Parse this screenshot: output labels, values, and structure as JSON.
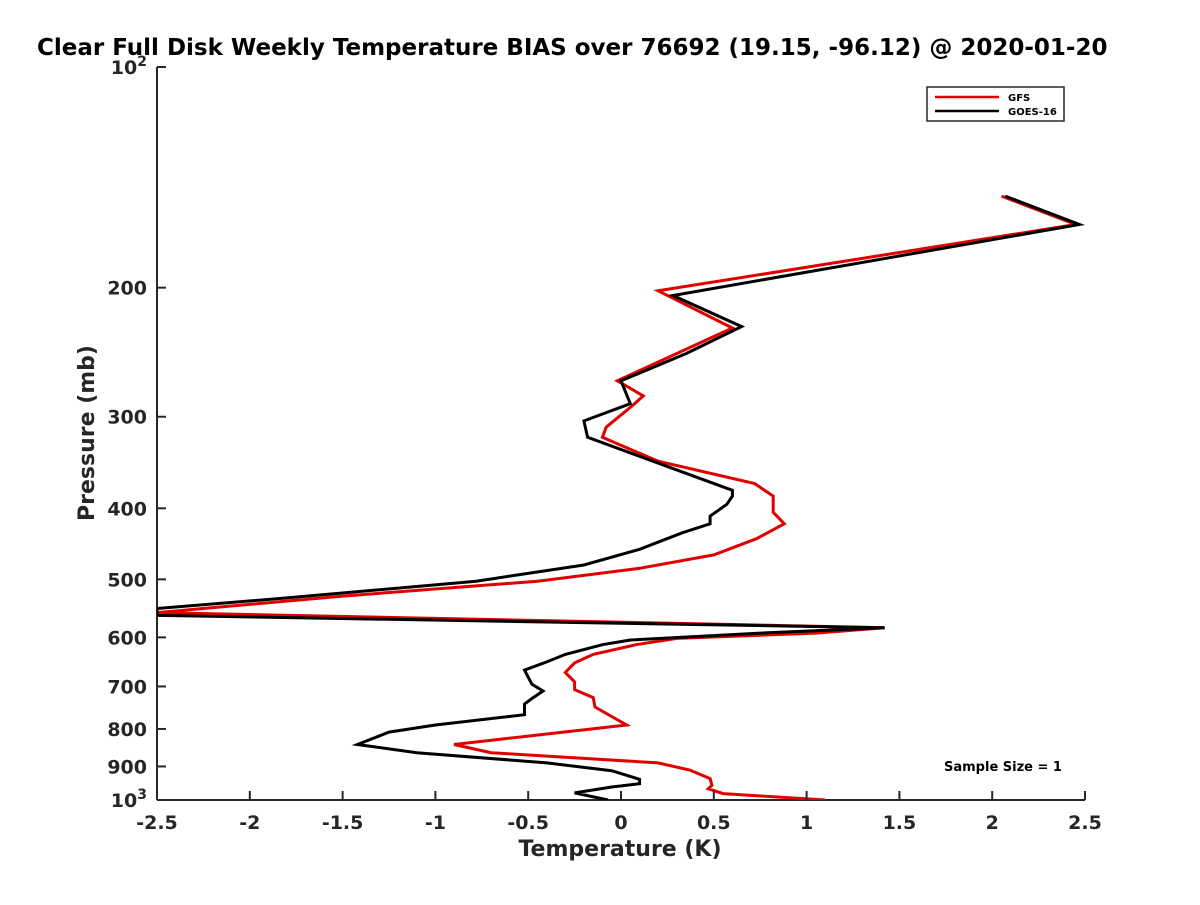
{
  "chart_data": {
    "type": "line",
    "title": "Clear Full Disk Weekly Temperature BIAS over 76692 (19.15, -96.12) @ 2020-01-20",
    "xlabel": "Temperature (K)",
    "ylabel": "Pressure (mb)",
    "xlim": [
      -2.5,
      2.5
    ],
    "ylim": [
      100,
      1000
    ],
    "y_scale": "log",
    "y_reversed": true,
    "x_ticks": [
      {
        "value": -2.5,
        "label": "-2.5"
      },
      {
        "value": -2,
        "label": "-2"
      },
      {
        "value": -1.5,
        "label": "-1.5"
      },
      {
        "value": -1,
        "label": "-1"
      },
      {
        "value": -0.5,
        "label": "-0.5"
      },
      {
        "value": 0,
        "label": "0"
      },
      {
        "value": 0.5,
        "label": "0.5"
      },
      {
        "value": 1,
        "label": "1"
      },
      {
        "value": 1.5,
        "label": "1.5"
      },
      {
        "value": 2,
        "label": "2"
      },
      {
        "value": 2.5,
        "label": "2.5"
      }
    ],
    "y_ticks": [
      {
        "value": 100,
        "base": "10",
        "exp": "2"
      },
      {
        "value": 200,
        "base": "200",
        "exp": ""
      },
      {
        "value": 300,
        "base": "300",
        "exp": ""
      },
      {
        "value": 400,
        "base": "400",
        "exp": ""
      },
      {
        "value": 500,
        "base": "500",
        "exp": ""
      },
      {
        "value": 600,
        "base": "600",
        "exp": ""
      },
      {
        "value": 700,
        "base": "700",
        "exp": ""
      },
      {
        "value": 800,
        "base": "800",
        "exp": ""
      },
      {
        "value": 900,
        "base": "900",
        "exp": ""
      },
      {
        "value": 1000,
        "base": "10",
        "exp": "3"
      }
    ],
    "grid": false,
    "legend_position": "top-right",
    "series": [
      {
        "name": "GFS",
        "color": "#e00000",
        "points": [
          [
            2.05,
            150
          ],
          [
            2.45,
            164
          ],
          [
            0.2,
            202
          ],
          [
            0.6,
            227
          ],
          [
            -0.02,
            268
          ],
          [
            0.12,
            281
          ],
          [
            0.06,
            290
          ],
          [
            -0.08,
            310
          ],
          [
            -0.1,
            320
          ],
          [
            0.2,
            345
          ],
          [
            0.72,
            370
          ],
          [
            0.82,
            385
          ],
          [
            0.82,
            405
          ],
          [
            0.88,
            420
          ],
          [
            0.73,
            440
          ],
          [
            0.5,
            463
          ],
          [
            0.1,
            483
          ],
          [
            -0.45,
            503
          ],
          [
            -1.5,
            527
          ],
          [
            -2.5,
            555
          ],
          [
            1.42,
            582
          ],
          [
            1.05,
            592
          ],
          [
            0.3,
            602
          ],
          [
            0.08,
            614
          ],
          [
            -0.15,
            633
          ],
          [
            -0.25,
            650
          ],
          [
            -0.3,
            670
          ],
          [
            -0.25,
            690
          ],
          [
            -0.25,
            707
          ],
          [
            -0.15,
            725
          ],
          [
            -0.14,
            747
          ],
          [
            0.03,
            790
          ],
          [
            -0.9,
            840
          ],
          [
            -0.7,
            862
          ],
          [
            0.2,
            890
          ],
          [
            0.37,
            910
          ],
          [
            0.48,
            935
          ],
          [
            0.49,
            955
          ],
          [
            0.47,
            965
          ],
          [
            0.55,
            980
          ],
          [
            1.1,
            1000
          ]
        ]
      },
      {
        "name": "GOES-16",
        "color": "#000000",
        "points": [
          [
            2.07,
            150
          ],
          [
            2.47,
            164
          ],
          [
            0.28,
            205
          ],
          [
            0.65,
            226
          ],
          [
            0.35,
            246
          ],
          [
            0.0,
            268
          ],
          [
            0.05,
            288
          ],
          [
            -0.2,
            304
          ],
          [
            -0.18,
            320
          ],
          [
            0.6,
            378
          ],
          [
            0.6,
            385
          ],
          [
            0.57,
            395
          ],
          [
            0.48,
            410
          ],
          [
            0.48,
            420
          ],
          [
            0.33,
            432
          ],
          [
            0.1,
            455
          ],
          [
            -0.2,
            478
          ],
          [
            -0.78,
            503
          ],
          [
            -1.8,
            530
          ],
          [
            -2.5,
            548
          ],
          [
            -2.5,
            560
          ],
          [
            1.42,
            582
          ],
          [
            0.75,
            592
          ],
          [
            0.05,
            605
          ],
          [
            -0.1,
            614
          ],
          [
            -0.3,
            633
          ],
          [
            -0.4,
            648
          ],
          [
            -0.52,
            665
          ],
          [
            -0.5,
            680
          ],
          [
            -0.48,
            695
          ],
          [
            -0.42,
            710
          ],
          [
            -0.48,
            727
          ],
          [
            -0.52,
            740
          ],
          [
            -0.52,
            765
          ],
          [
            -1.0,
            790
          ],
          [
            -1.25,
            808
          ],
          [
            -1.42,
            840
          ],
          [
            -1.1,
            862
          ],
          [
            -0.4,
            890
          ],
          [
            -0.05,
            912
          ],
          [
            0.1,
            937
          ],
          [
            0.1,
            950
          ],
          [
            -0.05,
            960
          ],
          [
            -0.25,
            978
          ],
          [
            -0.07,
            1000
          ]
        ]
      }
    ],
    "annotation": "Sample Size = 1"
  }
}
